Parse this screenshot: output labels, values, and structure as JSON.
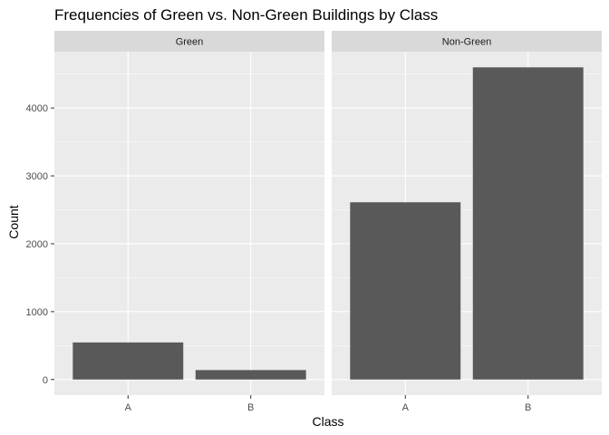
{
  "chart_data": {
    "type": "bar",
    "title": "Frequencies of Green vs. Non-Green Buildings by Class",
    "xlabel": "Class",
    "ylabel": "Count",
    "ylim": [
      -230,
      4830
    ],
    "yticks": [
      0,
      1000,
      2000,
      3000,
      4000
    ],
    "ytick_labels": [
      "0",
      "1000",
      "2000",
      "3000",
      "4000"
    ],
    "categories": [
      "A",
      "B"
    ],
    "grid": true,
    "facets": [
      {
        "label": "Green",
        "values": [
          546,
          139
        ]
      },
      {
        "label": "Non-Green",
        "values": [
          2611,
          4599
        ]
      }
    ],
    "colors": {
      "bar": "#595959",
      "panel_bg": "#ebebeb",
      "strip_bg": "#d9d9d9",
      "grid_major": "#ffffff",
      "tick": "#333333"
    }
  }
}
